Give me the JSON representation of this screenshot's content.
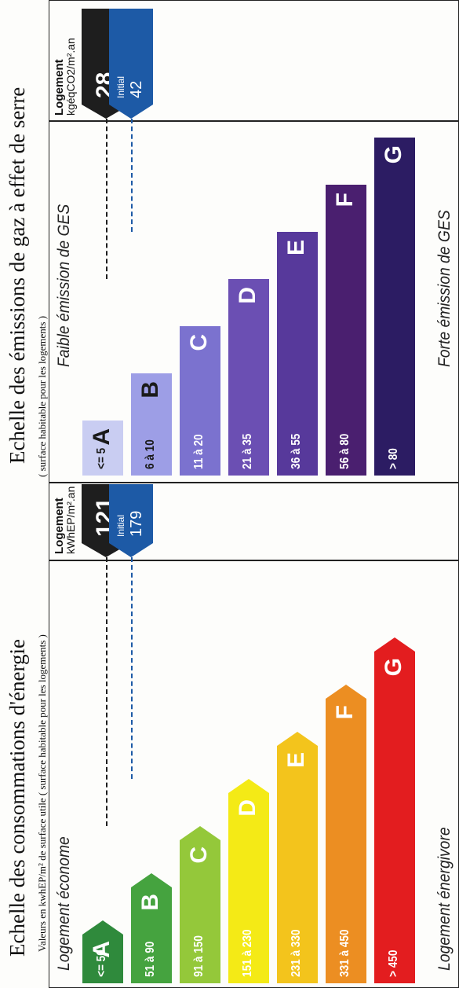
{
  "energy": {
    "title": "Echelle des consommations d'énergie",
    "subtitle": "Valeurs en kwhEP/m² de surface utile ( surface habitable pour les logements )",
    "top_label": "Logement économe",
    "bottom_label": "Logement énergivore",
    "unit_title": "Logement",
    "unit": "kWhEP/m².an",
    "classes": [
      {
        "letter": "A",
        "range": "<= 50",
        "color": "#2f8a3c"
      },
      {
        "letter": "B",
        "range": "51 à 90",
        "color": "#45a33f"
      },
      {
        "letter": "C",
        "range": "91 à 150",
        "color": "#94c83a"
      },
      {
        "letter": "D",
        "range": "151 à 230",
        "color": "#f4ea16"
      },
      {
        "letter": "E",
        "range": "231 à 330",
        "color": "#f3c41c"
      },
      {
        "letter": "F",
        "range": "331 à 450",
        "color": "#ec8e22"
      },
      {
        "letter": "G",
        "range": "> 450",
        "color": "#e31d1f"
      }
    ],
    "current": {
      "value": "121",
      "class": "C",
      "color": "#1e1e1e"
    },
    "initial": {
      "label": "Initial",
      "value": "179",
      "class": "D",
      "color": "#1d5aa6"
    }
  },
  "ges": {
    "title": "Echelle des émissions de gaz à effet de serre",
    "top_label": "Faible émission de GES",
    "bottom_label": "Forte émission de GES",
    "unit_title": "Logement",
    "unit": "kgéqCO2/m².an",
    "classes": [
      {
        "letter": "A",
        "range": "<= 5",
        "color": "#c9cdf2",
        "dark": true
      },
      {
        "letter": "B",
        "range": "6 à 10",
        "color": "#9d9ee6",
        "dark": true
      },
      {
        "letter": "C",
        "range": "11 à 20",
        "color": "#7b72cf"
      },
      {
        "letter": "D",
        "range": "21 à 35",
        "color": "#6b4fb3"
      },
      {
        "letter": "E",
        "range": "36 à 55",
        "color": "#57399b"
      },
      {
        "letter": "F",
        "range": "56 à 80",
        "color": "#4a1f6f"
      },
      {
        "letter": "G",
        "range": "> 80",
        "color": "#2c1c63"
      }
    ],
    "current": {
      "value": "28",
      "class": "D",
      "color": "#1e1e1e"
    },
    "initial": {
      "label": "Initial",
      "value": "42",
      "class": "E",
      "color": "#1d5aa6"
    }
  }
}
